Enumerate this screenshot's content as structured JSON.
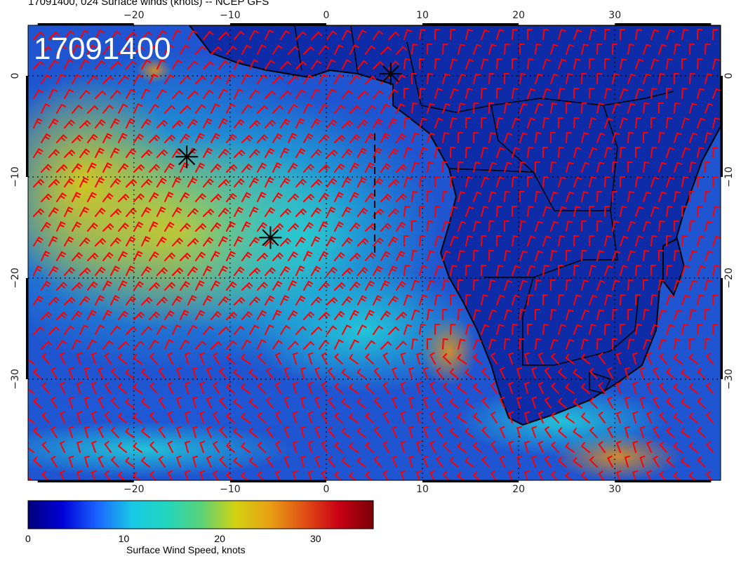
{
  "title": "17091400, 024 Surface winds (knots) -- NCEP GFS",
  "stamp": "17091400",
  "map": {
    "lon_range": [
      -31,
      41
    ],
    "lat_range": [
      -40,
      5
    ],
    "lon_ticks": [
      "−20",
      "−10",
      "0",
      "10",
      "20",
      "30"
    ],
    "lat_ticks": [
      "0",
      "−10",
      "−20",
      "−30"
    ],
    "wind_barb_color": "#ff0000",
    "coastline_color": "#000000",
    "markers": [
      {
        "name": "storm-marker-1",
        "lon": -14.5,
        "lat": -8.0
      },
      {
        "name": "storm-marker-2",
        "lon": -5.8,
        "lat": -16.0
      },
      {
        "name": "storm-marker-3",
        "lon": 6.7,
        "lat": 0.2
      }
    ]
  },
  "colorbar": {
    "label": "Surface Wind Speed, knots",
    "ticks": [
      {
        "v": 0,
        "t": "0"
      },
      {
        "v": 10,
        "t": "10"
      },
      {
        "v": 20,
        "t": "20"
      },
      {
        "v": 30,
        "t": "30"
      }
    ],
    "range": [
      0,
      36
    ],
    "colors": [
      "#00007a",
      "#0000d8",
      "#1a64ff",
      "#19c8e6",
      "#21d6be",
      "#58d27a",
      "#d2d212",
      "#e8a014",
      "#e05014",
      "#c80014",
      "#780008"
    ]
  }
}
